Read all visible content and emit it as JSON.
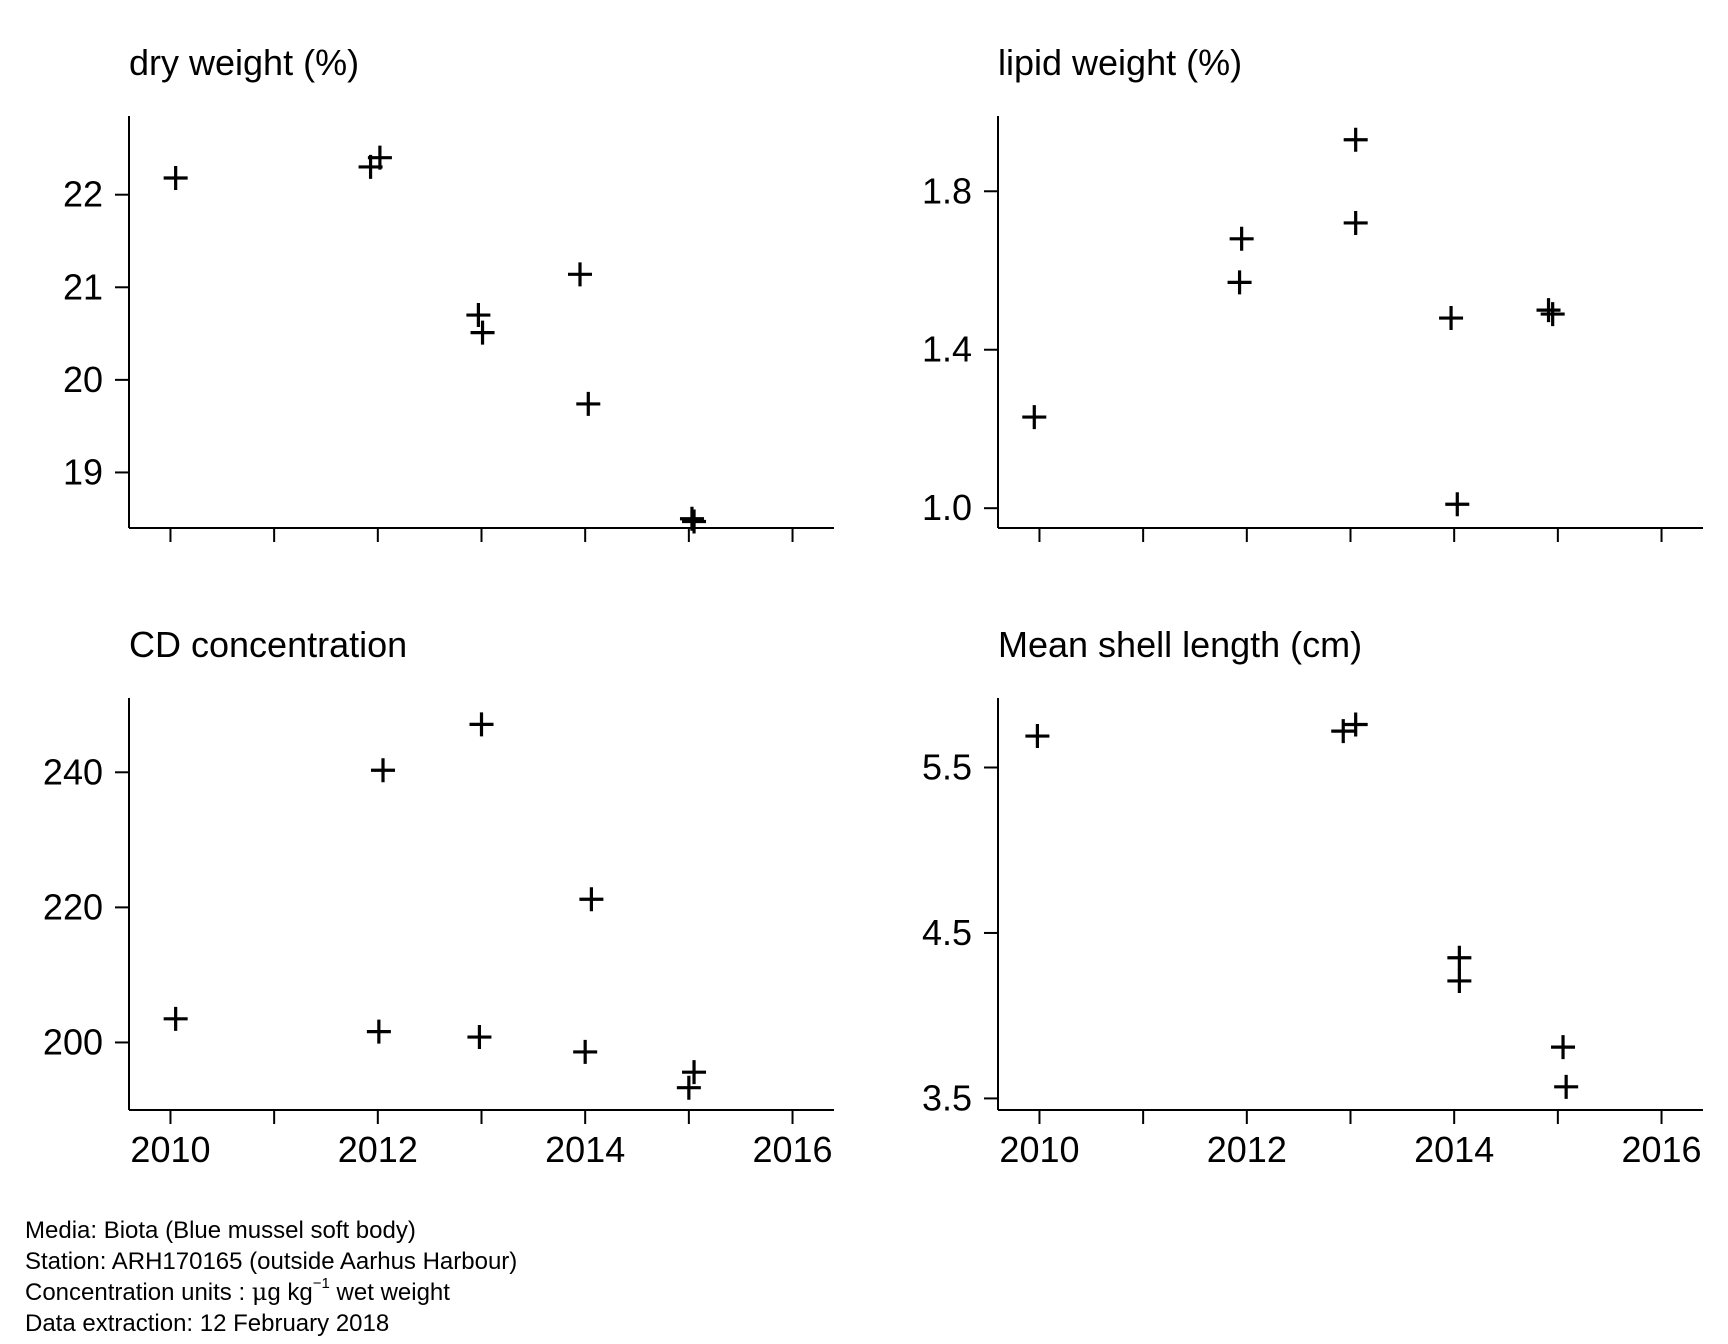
{
  "chart_data": [
    {
      "type": "scatter",
      "title": "dry weight (%)",
      "xlabel": "",
      "ylabel": "",
      "xlim": [
        2009.6,
        2016.4
      ],
      "ylim": [
        18.4,
        22.85
      ],
      "xticks": [
        2010,
        2011,
        2012,
        2013,
        2014,
        2015,
        2016
      ],
      "xticklabels": [],
      "yticks": [
        19,
        20,
        21,
        22
      ],
      "yticklabels": [
        "19",
        "20",
        "21",
        "22"
      ],
      "marker": "+",
      "points": [
        {
          "x": 2010.05,
          "y": 22.18
        },
        {
          "x": 2011.93,
          "y": 22.3
        },
        {
          "x": 2012.02,
          "y": 22.4
        },
        {
          "x": 2012.97,
          "y": 20.7
        },
        {
          "x": 2013.01,
          "y": 20.51
        },
        {
          "x": 2013.95,
          "y": 21.14
        },
        {
          "x": 2014.03,
          "y": 19.74
        },
        {
          "x": 2015.03,
          "y": 18.5
        },
        {
          "x": 2015.05,
          "y": 18.47
        }
      ]
    },
    {
      "type": "scatter",
      "title": "lipid weight (%)",
      "xlabel": "",
      "ylabel": "",
      "xlim": [
        2009.6,
        2016.4
      ],
      "ylim": [
        0.95,
        1.99
      ],
      "xticks": [
        2010,
        2011,
        2012,
        2013,
        2014,
        2015,
        2016
      ],
      "xticklabels": [],
      "yticks": [
        1.0,
        1.4,
        1.8
      ],
      "yticklabels": [
        "1.0",
        "1.4",
        "1.8"
      ],
      "marker": "+",
      "points": [
        {
          "x": 2009.95,
          "y": 1.23
        },
        {
          "x": 2011.93,
          "y": 1.57
        },
        {
          "x": 2011.95,
          "y": 1.68
        },
        {
          "x": 2013.05,
          "y": 1.93
        },
        {
          "x": 2013.05,
          "y": 1.72
        },
        {
          "x": 2013.97,
          "y": 1.48
        },
        {
          "x": 2014.03,
          "y": 1.01
        },
        {
          "x": 2014.91,
          "y": 1.5
        },
        {
          "x": 2014.95,
          "y": 1.49
        }
      ]
    },
    {
      "type": "scatter",
      "title": "CD concentration",
      "xlabel": "",
      "ylabel": "",
      "xlim": [
        2009.6,
        2016.4
      ],
      "ylim": [
        190,
        251
      ],
      "xticks": [
        2010,
        2011,
        2012,
        2013,
        2014,
        2015,
        2016
      ],
      "xticklabels": [
        "2010",
        "",
        "2012",
        "",
        "2014",
        "",
        "2016"
      ],
      "yticks": [
        200,
        220,
        240
      ],
      "yticklabels": [
        "200",
        "220",
        "240"
      ],
      "marker": "+",
      "points": [
        {
          "x": 2010.05,
          "y": 203.5
        },
        {
          "x": 2012.05,
          "y": 240.3
        },
        {
          "x": 2013.0,
          "y": 247.1
        },
        {
          "x": 2014.06,
          "y": 221.2
        },
        {
          "x": 2012.01,
          "y": 201.6
        },
        {
          "x": 2012.98,
          "y": 200.8
        },
        {
          "x": 2014.0,
          "y": 198.6
        },
        {
          "x": 2015.05,
          "y": 195.6
        },
        {
          "x": 2015.0,
          "y": 193.3
        }
      ]
    },
    {
      "type": "scatter",
      "title": "Mean shell length (cm)",
      "xlabel": "",
      "ylabel": "",
      "xlim": [
        2009.6,
        2016.4
      ],
      "ylim": [
        3.43,
        5.92
      ],
      "xticks": [
        2010,
        2011,
        2012,
        2013,
        2014,
        2015,
        2016
      ],
      "xticklabels": [
        "2010",
        "",
        "2012",
        "",
        "2014",
        "",
        "2016"
      ],
      "yticks": [
        3.5,
        4.5,
        5.5
      ],
      "yticklabels": [
        "3.5",
        "4.5",
        "5.5"
      ],
      "marker": "+",
      "points": [
        {
          "x": 2009.98,
          "y": 5.69
        },
        {
          "x": 2012.93,
          "y": 5.72
        },
        {
          "x": 2013.05,
          "y": 5.76
        },
        {
          "x": 2014.05,
          "y": 4.35
        },
        {
          "x": 2014.05,
          "y": 4.21
        },
        {
          "x": 2015.05,
          "y": 3.81
        },
        {
          "x": 2015.08,
          "y": 3.57
        }
      ]
    }
  ],
  "footer": {
    "media": "Media: Biota (Blue mussel soft body)",
    "station": "Station: ARH170165 (outside Aarhus Harbour)",
    "units_prefix": "Concentration units :",
    "units_mu": "μ",
    "units_g": "g kg",
    "units_exp": "−1",
    "units_suffix": " wet weight",
    "extraction": "Data extraction: 12 February 2018"
  }
}
